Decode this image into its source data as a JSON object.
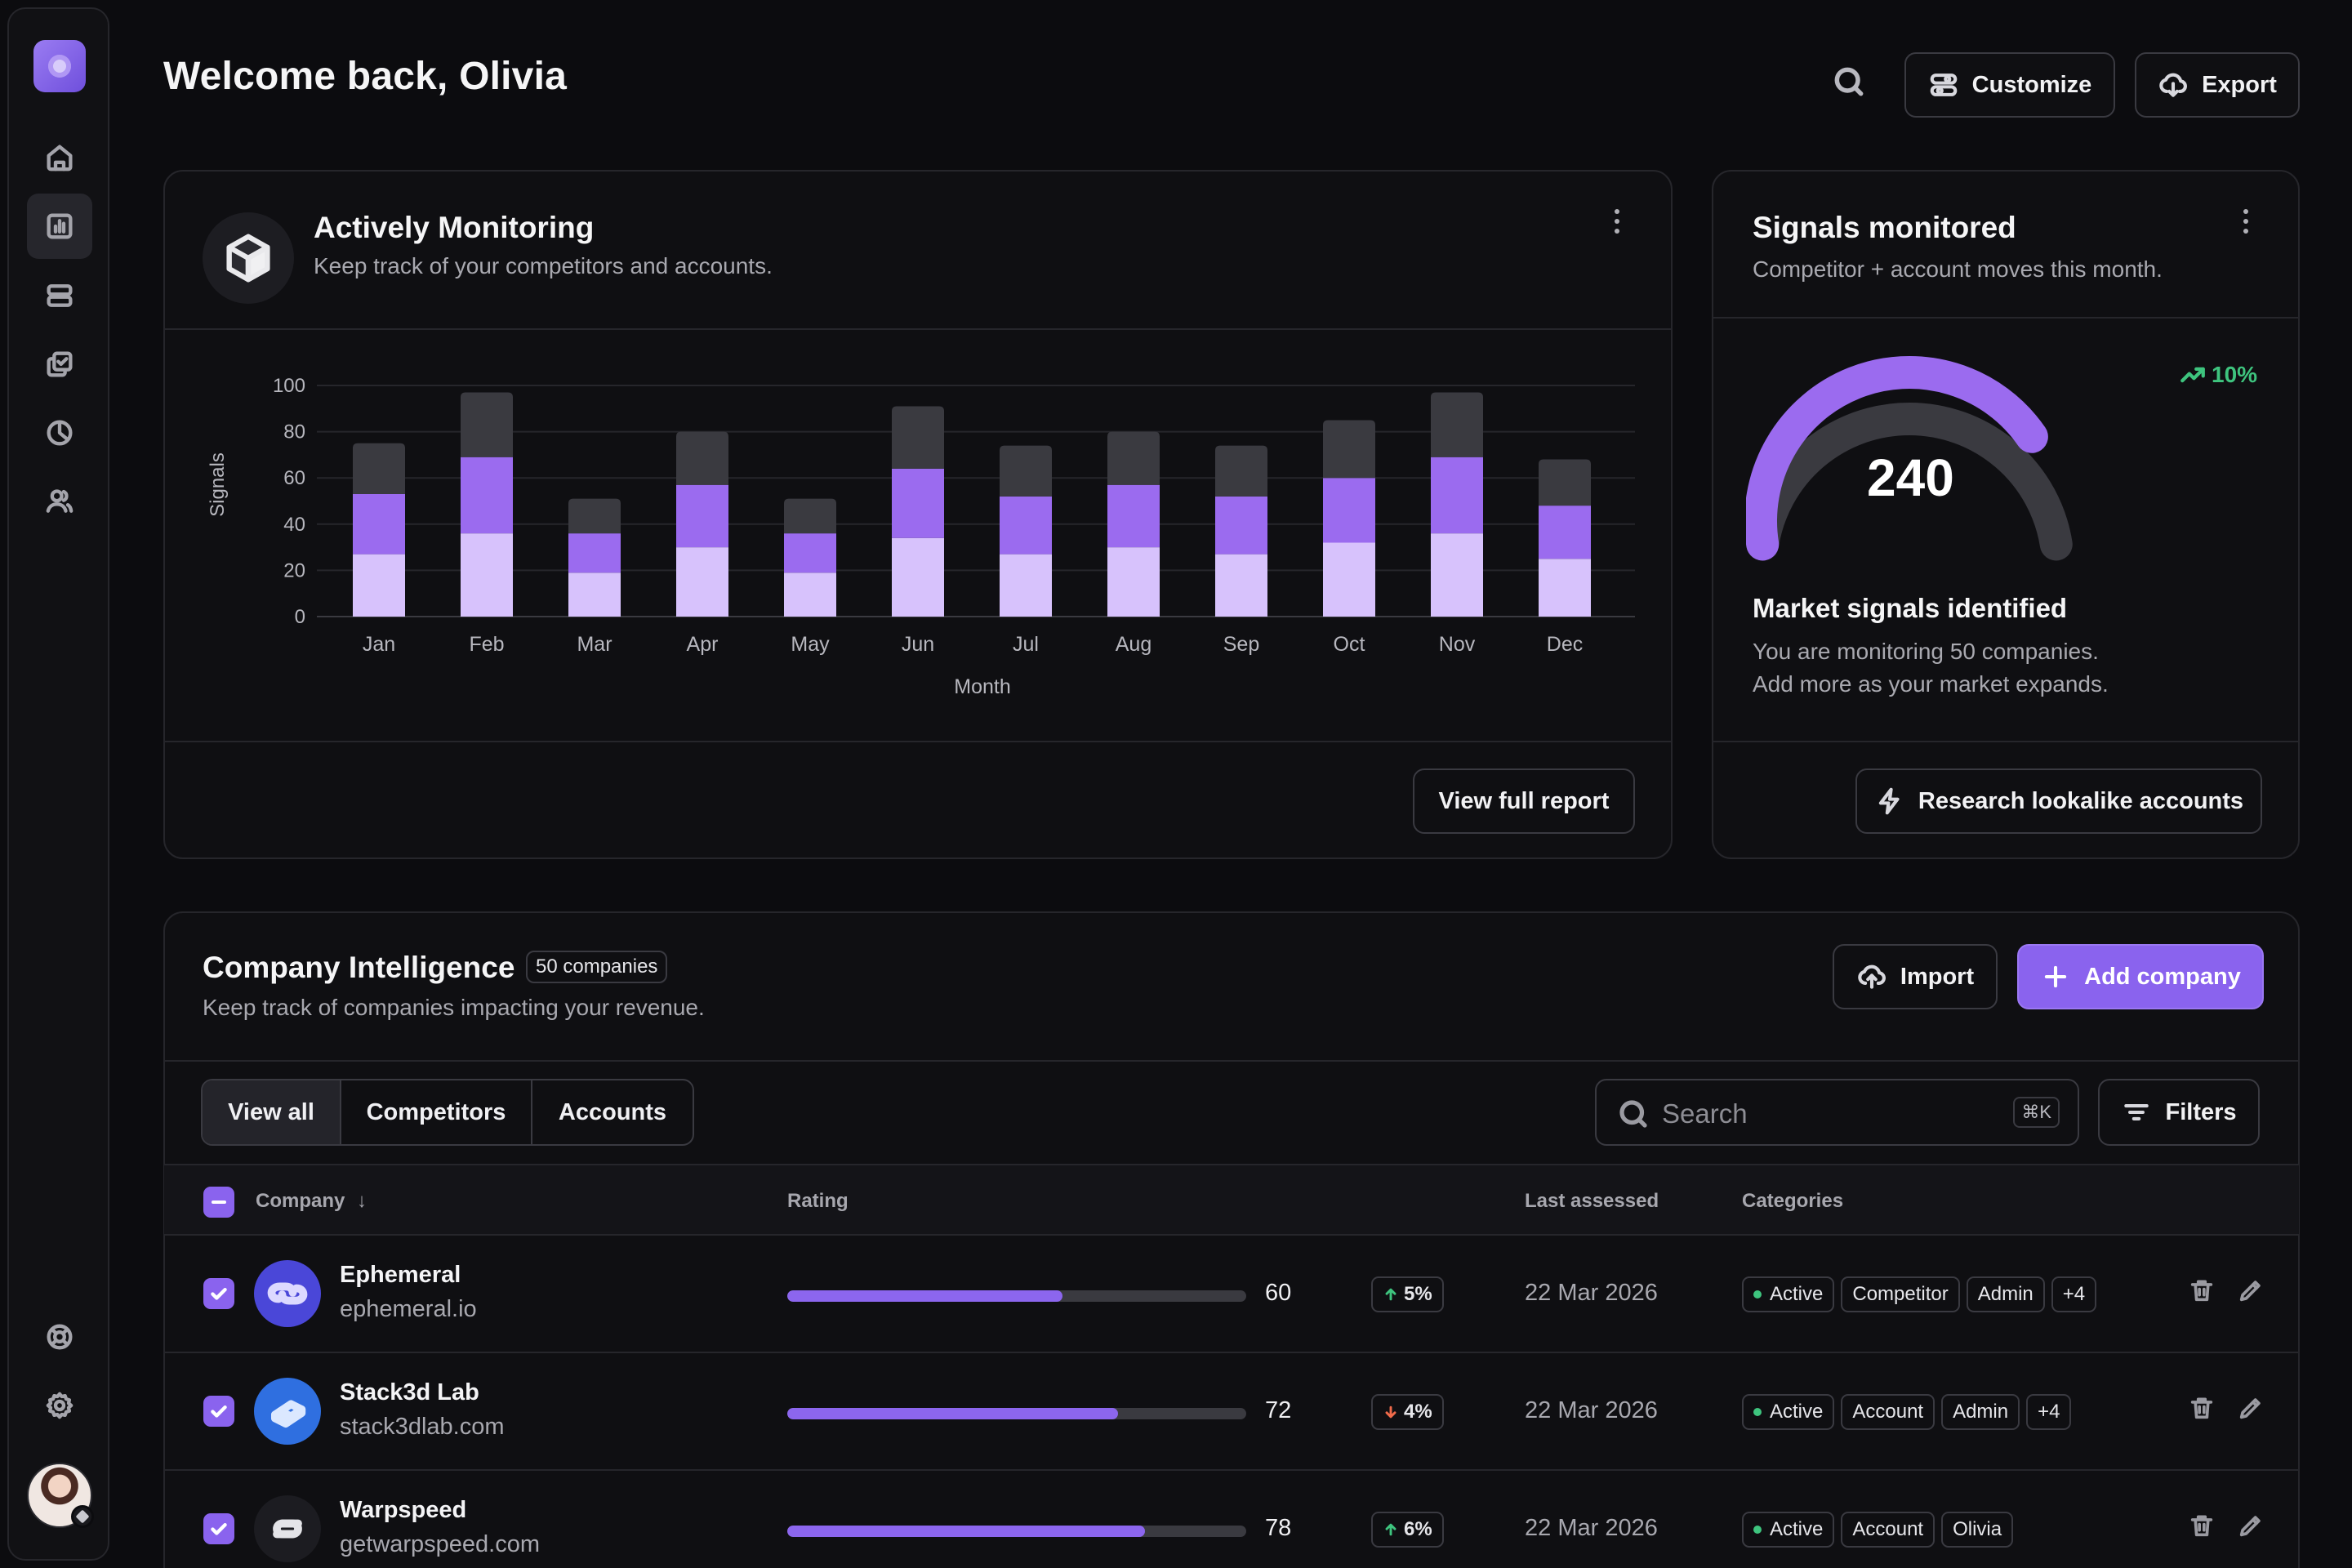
{
  "header": {
    "welcome": "Welcome back, Olivia",
    "customize_label": "Customize",
    "export_label": "Export"
  },
  "sidebar": {
    "items": [
      {
        "name": "home",
        "icon": "home-icon"
      },
      {
        "name": "analytics",
        "icon": "bar-chart-icon",
        "active": true
      },
      {
        "name": "layers",
        "icon": "rows-icon"
      },
      {
        "name": "tasks",
        "icon": "check-stack-icon"
      },
      {
        "name": "reports",
        "icon": "pie-chart-icon"
      },
      {
        "name": "users",
        "icon": "users-icon"
      }
    ],
    "bottom": [
      {
        "name": "support",
        "icon": "lifebuoy-icon"
      },
      {
        "name": "settings",
        "icon": "gear-icon"
      }
    ]
  },
  "monitoring": {
    "title": "Actively Monitoring",
    "subtitle": "Keep track of your competitors and accounts.",
    "button": "View full report"
  },
  "chart_data": {
    "type": "bar",
    "stacked": true,
    "xlabel": "Month",
    "ylabel": "Signals",
    "ylim": [
      0,
      100
    ],
    "yticks": [
      0,
      20,
      40,
      60,
      80,
      100
    ],
    "categories": [
      "Jan",
      "Feb",
      "Mar",
      "Apr",
      "May",
      "Jun",
      "Jul",
      "Aug",
      "Sep",
      "Oct",
      "Nov",
      "Dec"
    ],
    "series": [
      {
        "color": "#d7c2fc",
        "values": [
          27,
          36,
          19,
          30,
          19,
          34,
          27,
          30,
          27,
          32,
          36,
          25
        ]
      },
      {
        "color": "#9b6bef",
        "values": [
          26,
          33,
          17,
          27,
          17,
          30,
          25,
          27,
          25,
          28,
          33,
          23
        ]
      },
      {
        "color": "#3a3a40",
        "values": [
          22,
          28,
          15,
          23,
          15,
          27,
          22,
          23,
          22,
          25,
          28,
          20
        ]
      }
    ],
    "grid": true
  },
  "signals": {
    "title": "Signals monitored",
    "subtitle": "Competitor + account moves this month.",
    "value": "240",
    "fraction": 0.78,
    "trend": "10%",
    "heading": "Market signals identified",
    "body_line1": "You are monitoring 50 companies.",
    "body_line2": "Add more as your market expands.",
    "button": "Research lookalike accounts"
  },
  "companies": {
    "title": "Company Intelligence",
    "count_badge": "50 companies",
    "subtitle": "Keep track of companies impacting your revenue.",
    "import_label": "Import",
    "add_label": "Add company",
    "tabs": [
      "View all",
      "Competitors",
      "Accounts"
    ],
    "search_placeholder": "Search",
    "search_shortcut": "⌘K",
    "filters_label": "Filters",
    "columns": {
      "company": "Company",
      "rating": "Rating",
      "last_assessed": "Last assessed",
      "categories": "Categories"
    },
    "rows": [
      {
        "name": "Ephemeral",
        "domain": "ephemeral.io",
        "rating": 60,
        "rating_label": "60",
        "delta": "5%",
        "delta_dir": "up",
        "assessed": "22 Mar 2026",
        "tags": [
          "Active",
          "Competitor",
          "Admin",
          "+4"
        ],
        "logo_bg": "#4a47d8",
        "logo_fg": "#dcd9ff"
      },
      {
        "name": "Stack3d Lab",
        "domain": "stack3dlab.com",
        "rating": 72,
        "rating_label": "72",
        "delta": "4%",
        "delta_dir": "down",
        "assessed": "22 Mar 2026",
        "tags": [
          "Active",
          "Account",
          "Admin",
          "+4"
        ],
        "logo_bg": "#2f6fe0",
        "logo_fg": "#dbe8ff"
      },
      {
        "name": "Warpspeed",
        "domain": "getwarpspeed.com",
        "rating": 78,
        "rating_label": "78",
        "delta": "6%",
        "delta_dir": "up",
        "assessed": "22 Mar 2026",
        "tags": [
          "Active",
          "Account",
          "Olivia"
        ],
        "logo_bg": "#1c1c21",
        "logo_fg": "#e4e4e8"
      }
    ]
  },
  "colors": {
    "accent": "#8a63ee",
    "positive": "#3ec47e",
    "negative": "#f06a4a"
  }
}
